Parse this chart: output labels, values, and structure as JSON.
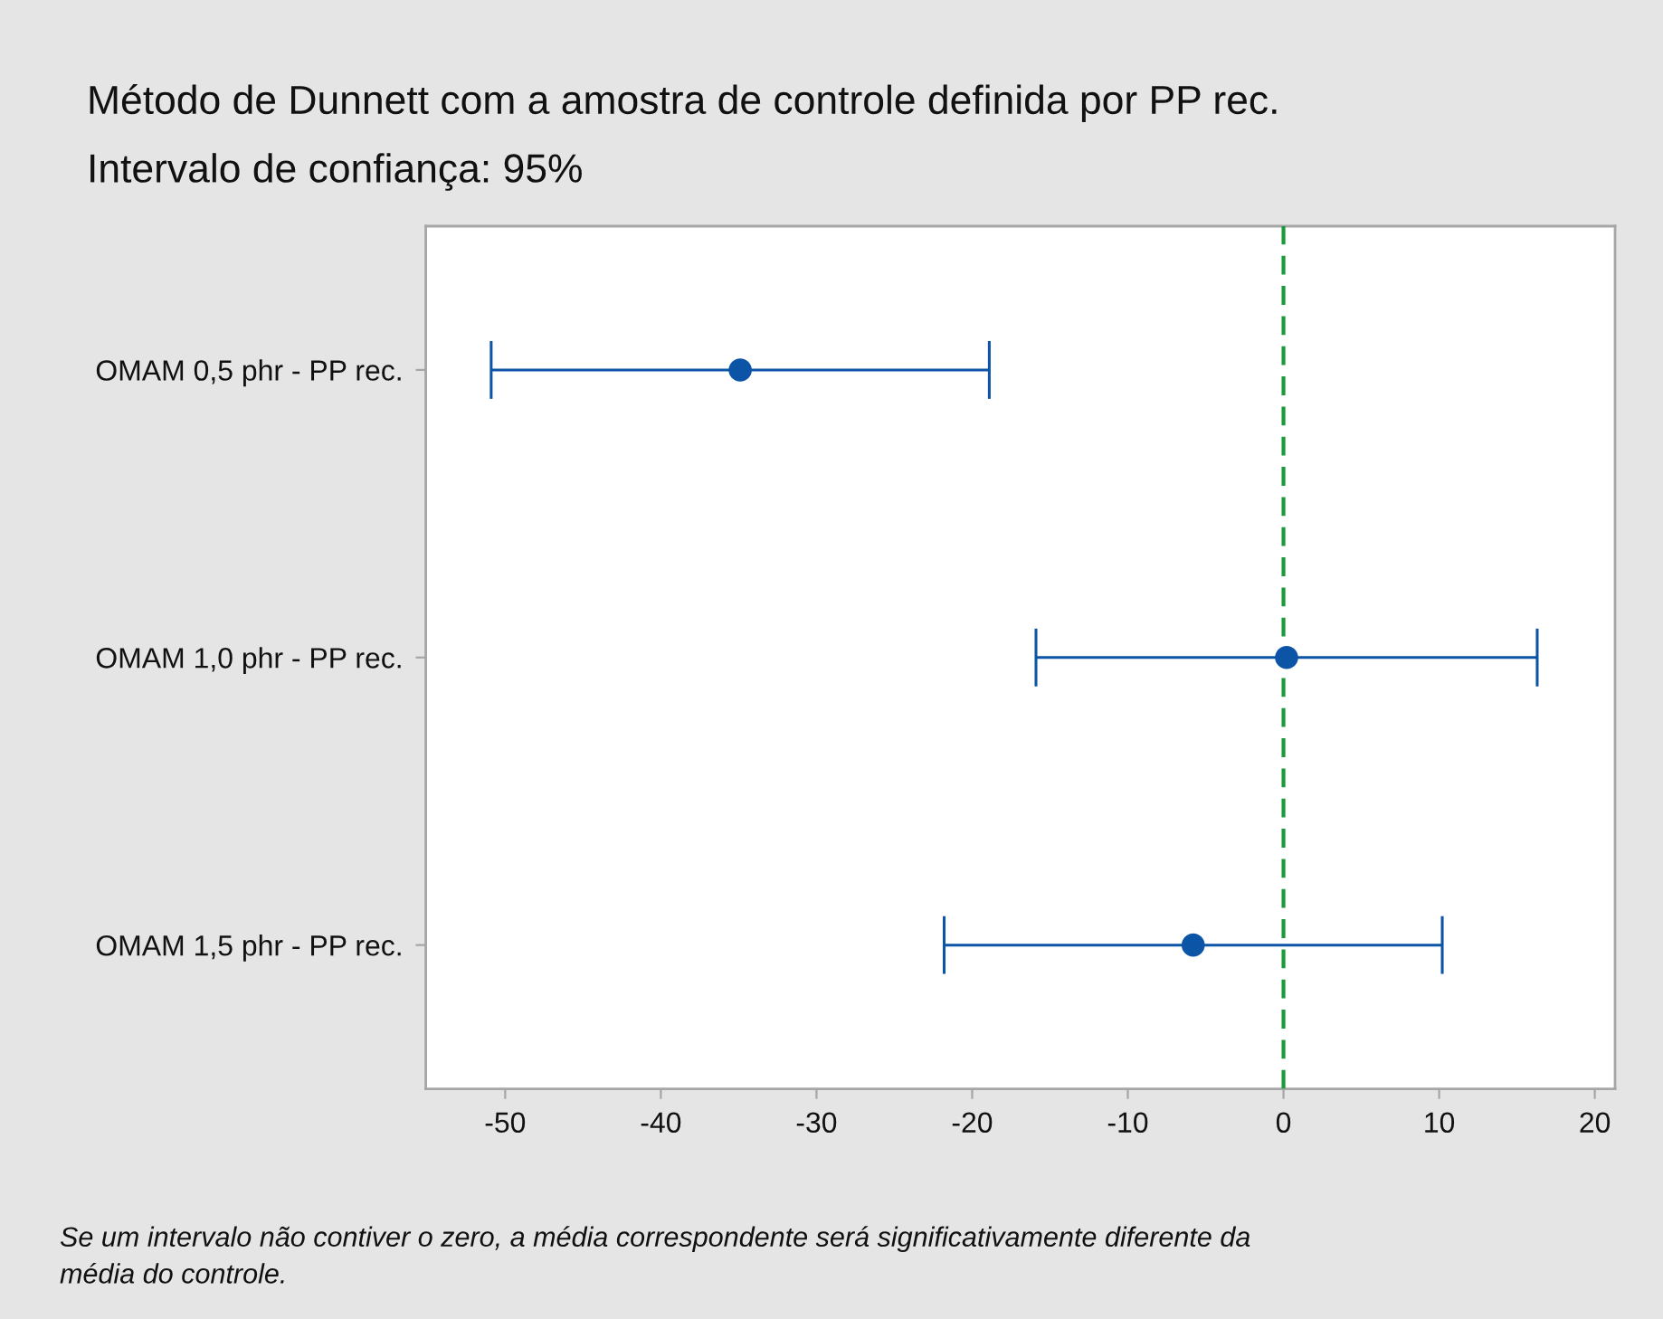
{
  "chart_data": {
    "type": "scatter",
    "orientation": "horizontal",
    "title": "Método de Dunnett com a amostra de controle definida por PP rec.",
    "subtitle": "Intervalo de confiança: 95%",
    "categories": [
      "OMAM 0,5 phr - PP rec.",
      "OMAM 1,0 phr - PP rec.",
      "OMAM 1,5 phr - PP rec."
    ],
    "series": [
      {
        "color": "#0c55a6",
        "values": [
          -34.9,
          0.2,
          -5.8
        ],
        "errors": [
          16.0,
          16.1,
          16.0
        ]
      }
    ],
    "marker": "circle",
    "xlim": [
      -55.1,
      21.3
    ],
    "xticks": [
      -50,
      -40,
      -30,
      -20,
      -10,
      0,
      10,
      20
    ],
    "ref_lines": [
      {
        "axis": "x",
        "value": 0,
        "color": "#1a9a3a",
        "line_style": "dashed"
      }
    ],
    "annotations": [
      "Se um intervalo não contiver o zero, a média correspondente será significativamente diferente da\nmédia do controle."
    ]
  }
}
